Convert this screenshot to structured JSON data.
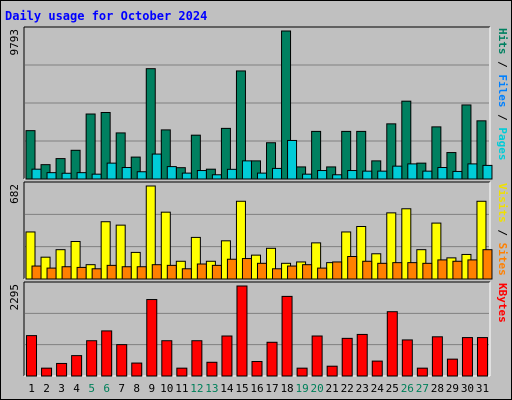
{
  "chart_data": {
    "type": "bar",
    "title": "Daily usage for October 2024",
    "days": [
      "1",
      "2",
      "3",
      "4",
      "5",
      "6",
      "7",
      "8",
      "9",
      "10",
      "11",
      "12",
      "13",
      "14",
      "15",
      "16",
      "17",
      "18",
      "19",
      "20",
      "21",
      "22",
      "23",
      "24",
      "25",
      "26",
      "27",
      "28",
      "29",
      "30",
      "31"
    ],
    "weekend_days": [
      "5",
      "6",
      "12",
      "13",
      "19",
      "20",
      "26",
      "27"
    ],
    "panels": [
      {
        "id": "hits-files-pages",
        "max_label": "9793",
        "ymax": 9793,
        "right_label_parts": [
          {
            "text": "Pages",
            "color": "#00ccd8"
          },
          {
            "text": " / ",
            "color": "#000000"
          },
          {
            "text": "Files",
            "color": "#0080ff"
          },
          {
            "text": " / ",
            "color": "#000000"
          },
          {
            "text": "Hits",
            "color": "#008060"
          }
        ],
        "series": [
          {
            "name": "Hits",
            "color": "#008060",
            "values": [
              3200,
              950,
              1350,
              1900,
              4300,
              4400,
              3050,
              1450,
              7300,
              3250,
              750,
              2900,
              650,
              3350,
              7150,
              1200,
              2400,
              9793,
              800,
              3150,
              800,
              3150,
              3150,
              1200,
              3650,
              5150,
              1050,
              3450,
              1750,
              4900,
              3850
            ]
          },
          {
            "name": "Pages",
            "color": "#00ccd8",
            "values": [
              650,
              420,
              380,
              420,
              320,
              1050,
              760,
              480,
              1650,
              820,
              390,
              560,
              280,
              640,
              1200,
              390,
              700,
              2550,
              320,
              560,
              280,
              560,
              520,
              520,
              850,
              1000,
              520,
              760,
              500,
              1000,
              900
            ]
          }
        ]
      },
      {
        "id": "visits-sites",
        "max_label": "682",
        "ymax": 682,
        "right_label_parts": [
          {
            "text": "Sites",
            "color": "#ff8000"
          },
          {
            "text": " / ",
            "color": "#000000"
          },
          {
            "text": "Visits",
            "color": "#f0e000"
          }
        ],
        "series": [
          {
            "name": "Visits",
            "color": "#ffff00",
            "values": [
              345,
              160,
              215,
              275,
              105,
              420,
              395,
              195,
              682,
              490,
              130,
              305,
              130,
              280,
              570,
              175,
              225,
              115,
              125,
              265,
              120,
              345,
              385,
              185,
              485,
              515,
              215,
              410,
              155,
              180,
              570
            ]
          },
          {
            "name": "Sites",
            "color": "#ff8000",
            "values": [
              95,
              80,
              90,
              85,
              75,
              100,
              90,
              90,
              105,
              100,
              75,
              110,
              100,
              145,
              150,
              115,
              75,
              95,
              105,
              80,
              125,
              165,
              130,
              115,
              120,
              120,
              115,
              140,
              130,
              140,
              215
            ]
          }
        ]
      },
      {
        "id": "kbytes",
        "max_label": "2295",
        "ymax": 2295,
        "right_label_parts": [
          {
            "text": "KBytes",
            "color": "#ff0000"
          }
        ],
        "series": [
          {
            "name": "KBytes",
            "color": "#ff0000",
            "values": [
              1030,
              200,
              320,
              520,
              900,
              1150,
              800,
              330,
              1950,
              900,
              200,
              900,
              350,
              1020,
              2295,
              370,
              860,
              2030,
              200,
              1020,
              250,
              960,
              1060,
              380,
              1640,
              920,
              200,
              1000,
              430,
              980,
              980
            ]
          }
        ]
      }
    ]
  }
}
